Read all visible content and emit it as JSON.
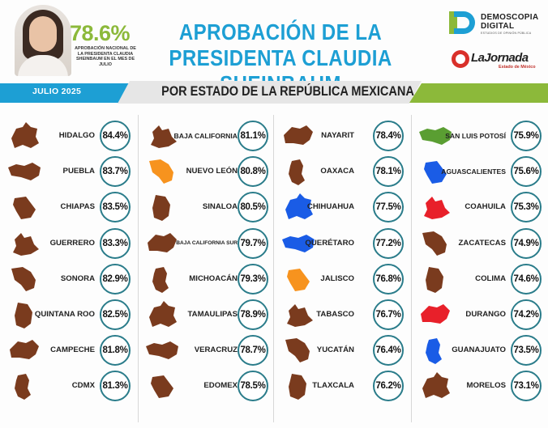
{
  "header": {
    "national_value": "78.6%",
    "national_label": "APROBACIÓN NACIONAL DE LA PRESIDENTA CLAUDIA SHEINBAUM EN EL MES DE JULIO",
    "title_line1": "APROBACIÓN DE LA",
    "title_line2": "PRESIDENTA CLAUDIA SHEINBAUM"
  },
  "branding": {
    "brand_line1": "DEMOSCOPIA",
    "brand_line2": "DIGITAL",
    "brand_tagline": "ESTUDIOS DE OPINIÓN PÚBLICA",
    "partner_name": "LaJornada",
    "partner_sub": "Estado de México"
  },
  "banner": {
    "month": "JULIO 2025",
    "subtitle": "POR ESTADO DE LA REPÚBLICA MEXICANA"
  },
  "colors": {
    "accent_green": "#8cb93a",
    "accent_blue": "#1d9fd4",
    "shape_brown": "#7a3b1e",
    "highlight_orange": "#f7931e",
    "highlight_blue": "#1a5ce6",
    "highlight_red": "#e8202a",
    "highlight_green": "#5a9e32",
    "circle_border": "#2a7c8a"
  },
  "chart_data": {
    "type": "table",
    "unit": "%",
    "states": [
      {
        "name": "HIDALGO",
        "value": 84.4,
        "label": "84.4%",
        "color": "brown"
      },
      {
        "name": "PUEBLA",
        "value": 83.7,
        "label": "83.7%",
        "color": "brown"
      },
      {
        "name": "CHIAPAS",
        "value": 83.5,
        "label": "83.5%",
        "color": "brown"
      },
      {
        "name": "GUERRERO",
        "value": 83.3,
        "label": "83.3%",
        "color": "brown"
      },
      {
        "name": "SONORA",
        "value": 82.9,
        "label": "82.9%",
        "color": "brown"
      },
      {
        "name": "QUINTANA ROO",
        "value": 82.5,
        "label": "82.5%",
        "color": "brown"
      },
      {
        "name": "CAMPECHE",
        "value": 81.8,
        "label": "81.8%",
        "color": "brown"
      },
      {
        "name": "CDMX",
        "value": 81.3,
        "label": "81.3%",
        "color": "brown"
      },
      {
        "name": "BAJA CALIFORNIA",
        "value": 81.1,
        "label": "81.1%",
        "color": "brown"
      },
      {
        "name": "NUEVO LEÓN",
        "value": 80.8,
        "label": "80.8%",
        "color": "orange"
      },
      {
        "name": "SINALOA",
        "value": 80.5,
        "label": "80.5%",
        "color": "brown"
      },
      {
        "name": "BAJA CALIFORNIA SUR",
        "value": 79.7,
        "label": "79.7%",
        "color": "brown"
      },
      {
        "name": "MICHOACÁN",
        "value": 79.3,
        "label": "79.3%",
        "color": "brown"
      },
      {
        "name": "TAMAULIPAS",
        "value": 78.9,
        "label": "78.9%",
        "color": "brown"
      },
      {
        "name": "VERACRUZ",
        "value": 78.7,
        "label": "78.7%",
        "color": "brown"
      },
      {
        "name": "EDOMEX",
        "value": 78.5,
        "label": "78.5%",
        "color": "brown"
      },
      {
        "name": "NAYARIT",
        "value": 78.4,
        "label": "78.4%",
        "color": "brown"
      },
      {
        "name": "OAXACA",
        "value": 78.1,
        "label": "78.1%",
        "color": "brown"
      },
      {
        "name": "CHIHUAHUA",
        "value": 77.5,
        "label": "77.5%",
        "color": "blue"
      },
      {
        "name": "QUERÉTARO",
        "value": 77.2,
        "label": "77.2%",
        "color": "blue"
      },
      {
        "name": "JALISCO",
        "value": 76.8,
        "label": "76.8%",
        "color": "orange"
      },
      {
        "name": "TABASCO",
        "value": 76.7,
        "label": "76.7%",
        "color": "brown"
      },
      {
        "name": "YUCATÁN",
        "value": 76.4,
        "label": "76.4%",
        "color": "brown"
      },
      {
        "name": "TLAXCALA",
        "value": 76.2,
        "label": "76.2%",
        "color": "brown"
      },
      {
        "name": "SAN LUIS POTOSÍ",
        "value": 75.9,
        "label": "75.9%",
        "color": "green"
      },
      {
        "name": "AGUASCALIENTES",
        "value": 75.6,
        "label": "75.6%",
        "color": "blue"
      },
      {
        "name": "COAHUILA",
        "value": 75.3,
        "label": "75.3%",
        "color": "red"
      },
      {
        "name": "ZACATECAS",
        "value": 74.9,
        "label": "74.9%",
        "color": "brown"
      },
      {
        "name": "COLIMA",
        "value": 74.6,
        "label": "74.6%",
        "color": "brown"
      },
      {
        "name": "DURANGO",
        "value": 74.2,
        "label": "74.2%",
        "color": "red"
      },
      {
        "name": "GUANAJUATO",
        "value": 73.5,
        "label": "73.5%",
        "color": "blue"
      },
      {
        "name": "MORELOS",
        "value": 73.1,
        "label": "73.1%",
        "color": "brown"
      }
    ]
  }
}
